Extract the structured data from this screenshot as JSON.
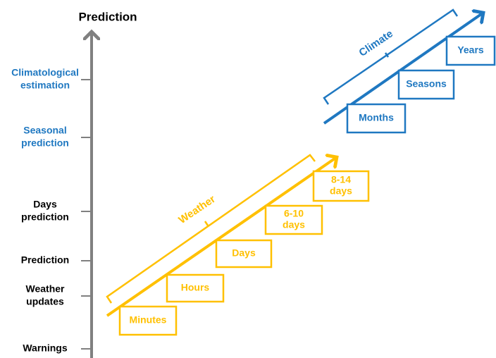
{
  "axis": {
    "title": "Prediction",
    "levels": [
      {
        "lines": [
          "Climatological",
          "estimation"
        ],
        "group": "climate"
      },
      {
        "lines": [
          "Seasonal",
          "prediction"
        ],
        "group": "climate"
      },
      {
        "lines": [
          "Days",
          "prediction"
        ],
        "group": "weather"
      },
      {
        "lines": [
          "Prediction"
        ],
        "group": "weather"
      },
      {
        "lines": [
          "Weather",
          "updates"
        ],
        "group": "weather"
      },
      {
        "lines": [
          "Warnings"
        ],
        "group": "weather"
      }
    ]
  },
  "weather": {
    "label": "Weather",
    "boxes": [
      {
        "lines": [
          "Minutes"
        ]
      },
      {
        "lines": [
          "Hours"
        ]
      },
      {
        "lines": [
          "Days"
        ]
      },
      {
        "lines": [
          "6-10",
          "days"
        ]
      },
      {
        "lines": [
          "8-14",
          "days"
        ]
      }
    ]
  },
  "climate": {
    "label": "Climate",
    "boxes": [
      {
        "lines": [
          "Months"
        ]
      },
      {
        "lines": [
          "Seasons"
        ]
      },
      {
        "lines": [
          "Years"
        ]
      }
    ]
  }
}
